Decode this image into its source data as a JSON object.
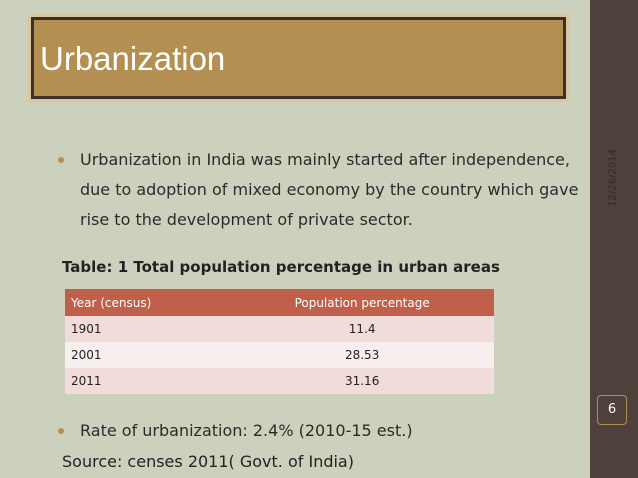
{
  "slide": {
    "title": "Urbanization",
    "date": "12/26/2014",
    "page_number": "6",
    "bullets": [
      "Urbanization in India was mainly started after independence, due to adoption of mixed economy by the country which gave rise to the development of private sector."
    ],
    "table": {
      "caption": "Table: 1 Total population percentage in urban areas",
      "header": [
        "Year (census)",
        "Population percentage"
      ],
      "rows": [
        [
          "1901",
          "11.4"
        ],
        [
          "2001",
          "28.53"
        ],
        [
          "2011",
          "31.16"
        ]
      ]
    },
    "bullets_2": [
      "Rate of urbanization: 2.4%  (2010-15 est.)"
    ],
    "source": "Source: censes 2011( Govt. of India)"
  }
}
